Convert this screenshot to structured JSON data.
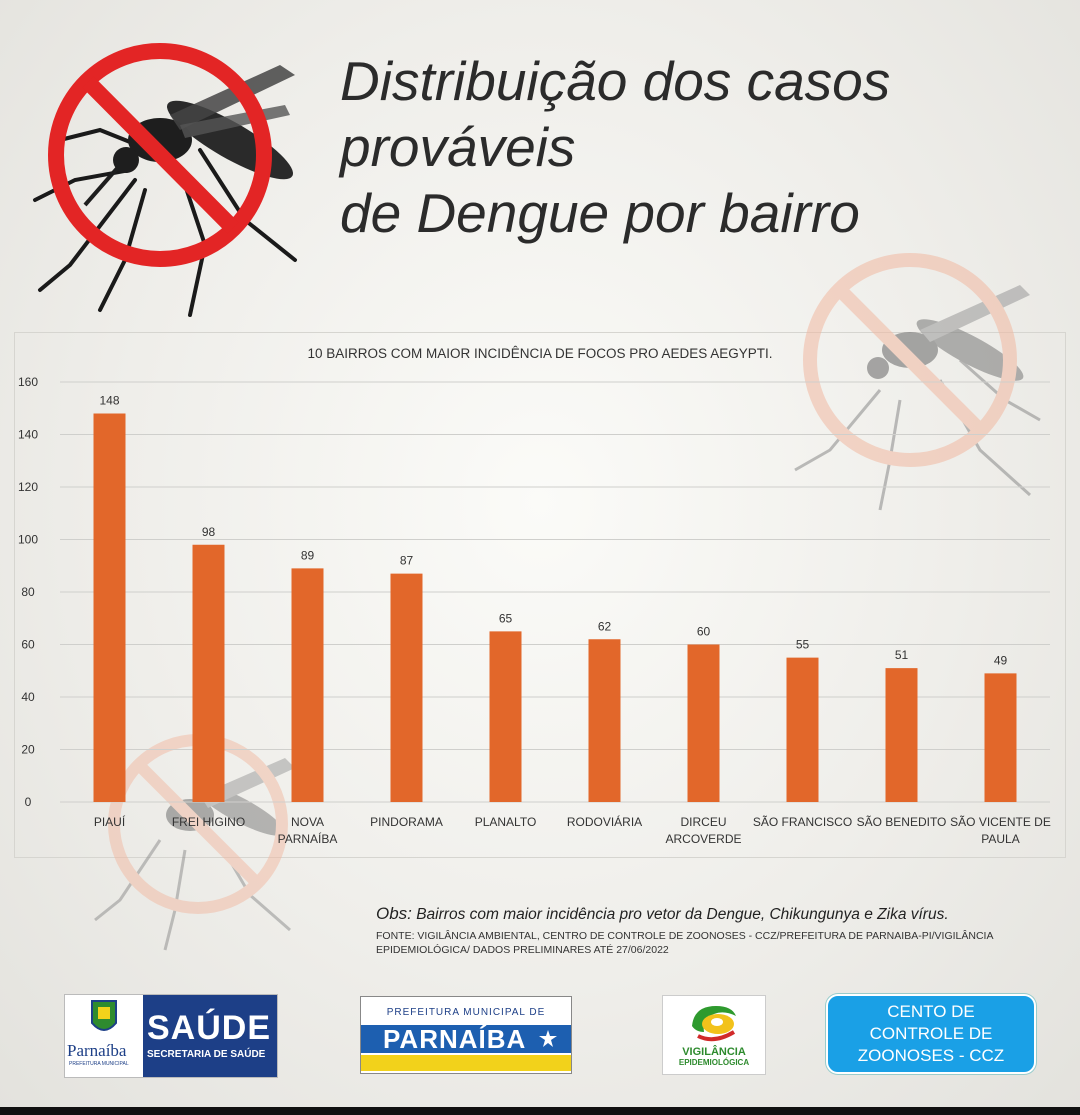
{
  "header": {
    "title_line1": "Distribuição dos casos prováveis",
    "title_line2": "de Dengue por bairro"
  },
  "icons": {
    "main": "no-mosquito-icon",
    "faded": "no-mosquito-icon"
  },
  "colors": {
    "bar": "#e2672a",
    "prohibition_red": "#e32525",
    "prohibition_faded": "#f1b9a2",
    "saude_blue": "#1d3f87",
    "ccz_blue": "#1aa0e6"
  },
  "chart_data": {
    "type": "bar",
    "title": "10 BAIRROS COM MAIOR INCIDÊNCIA DE FOCOS PRO AEDES AEGYPTI.",
    "categories": [
      "PIAUÍ",
      "FREI HIGINO",
      "NOVA PARNAÍBA",
      "PINDORAMA",
      "PLANALTO",
      "RODOVIÁRIA",
      "DIRCEU ARCOVERDE",
      "SÃO FRANCISCO",
      "SÃO BENEDITO",
      "SÃO VICENTE DE PAULA"
    ],
    "category_lines": [
      [
        "PIAUÍ"
      ],
      [
        "FREI HIGINO"
      ],
      [
        "NOVA",
        "PARNAÍBA"
      ],
      [
        "PINDORAMA"
      ],
      [
        "PLANALTO"
      ],
      [
        "RODOVIÁRIA"
      ],
      [
        "DIRCEU",
        "ARCOVERDE"
      ],
      [
        "SÃO FRANCISCO"
      ],
      [
        "SÃO BENEDITO"
      ],
      [
        "SÃO VICENTE DE",
        "PAULA"
      ]
    ],
    "values": [
      148,
      98,
      89,
      87,
      65,
      62,
      60,
      55,
      51,
      49
    ],
    "ylim": [
      0,
      160
    ],
    "yticks": [
      0,
      20,
      40,
      60,
      80,
      100,
      120,
      140,
      160
    ],
    "grid": true,
    "data_labels": true,
    "xlabel": "",
    "ylabel": ""
  },
  "footer": {
    "obs_label": "Obs:",
    "obs_text": "Bairros com maior incidência pro vetor da Dengue, Chikungunya e Zika vírus.",
    "source_line1": "FONTE: VIGILÂNCIA AMBIENTAL, CENTRO DE CONTROLE DE ZOONOSES - CCZ/PREFEITURA DE PARNAIBA-PI/VIGILÂNCIA",
    "source_line2": "EPIDEMIOLÓGICA/ DADOS PRELIMINARES ATÉ 27/06/2022"
  },
  "logos": {
    "saude": {
      "city": "Parnaíba",
      "city_sub": "PREFEITURA MUNICIPAL",
      "big": "SAÚDE",
      "small": "SECRETARIA DE SAÚDE"
    },
    "prefeitura": {
      "top": "PREFEITURA MUNICIPAL DE",
      "name": "PARNAÍBA"
    },
    "vigilancia": {
      "name": "VIGILÂNCIA",
      "sub": "EPIDEMIOLÓGICA"
    },
    "ccz": {
      "line1": "CENTO DE CONTROLE DE",
      "line2": "ZOONOSES -  CCZ"
    }
  }
}
